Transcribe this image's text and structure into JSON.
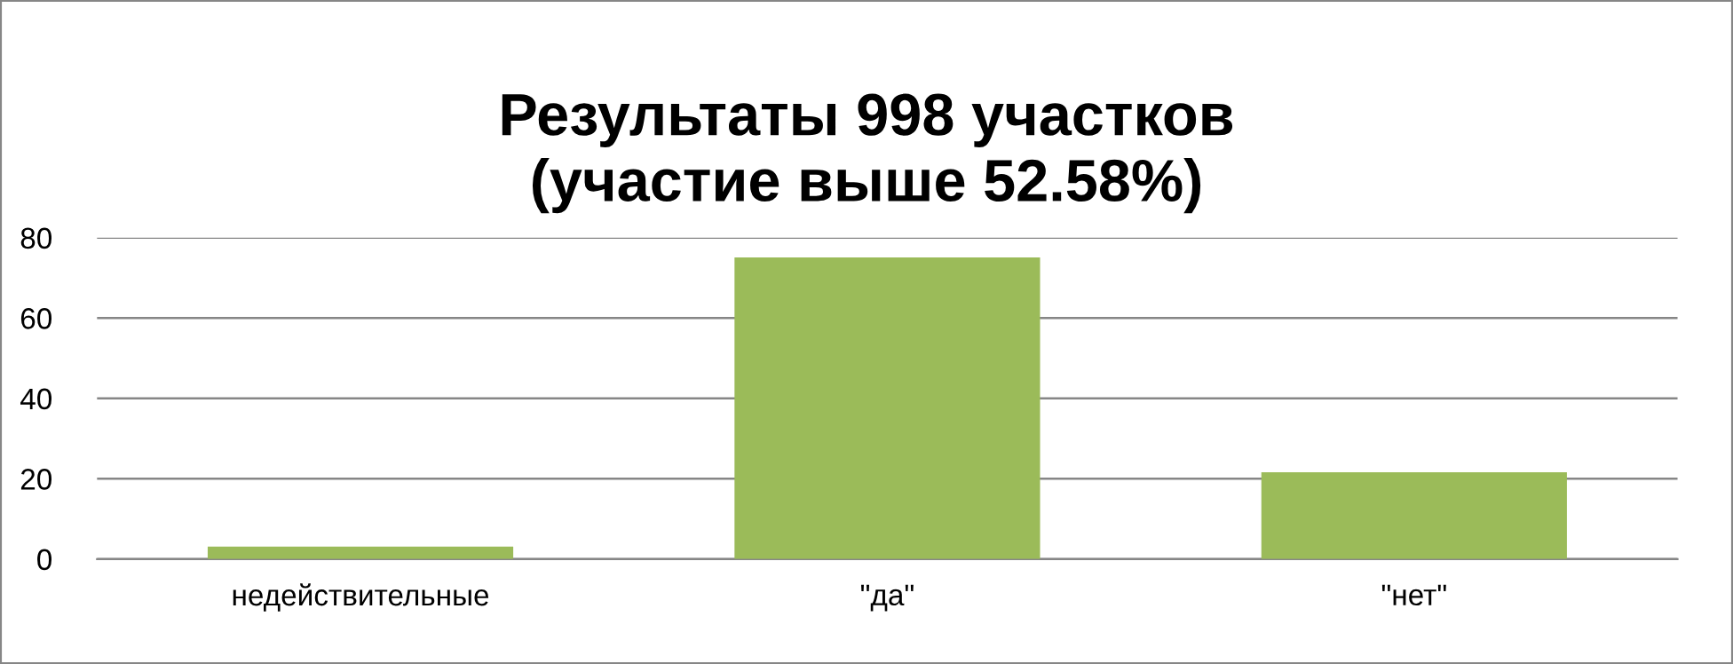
{
  "chart_data": {
    "type": "bar",
    "title": "Результаты 998 участков\n(участие выше 52.58%)",
    "categories": [
      "недействительные",
      "\"да\"",
      "\"нет\""
    ],
    "values": [
      3.1,
      75.1,
      21.6
    ],
    "color": "#9bbb59",
    "ylim": [
      0,
      80
    ],
    "yticks": [
      0,
      20,
      40,
      60,
      80
    ],
    "grid": "y",
    "legend": false
  }
}
